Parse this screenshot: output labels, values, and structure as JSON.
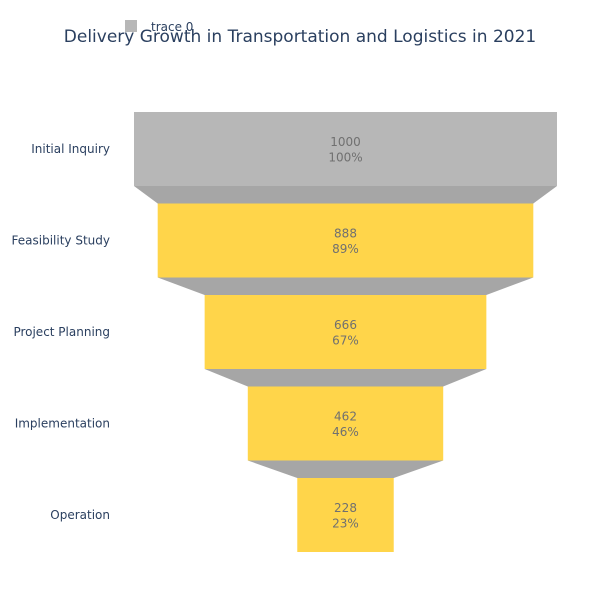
{
  "chart_data": {
    "type": "funnel",
    "title": "Delivery Growth in Transportation and Logistics in 2021",
    "legend": {
      "position": "top-left",
      "entries": [
        "trace 0"
      ]
    },
    "categories": [
      "Initial Inquiry",
      "Feasibility Study",
      "Project Planning",
      "Implementation",
      "Operation"
    ],
    "values": [
      1000,
      888,
      666,
      462,
      228
    ],
    "percent_labels": [
      "100%",
      "89%",
      "67%",
      "46%",
      "23%"
    ],
    "colors": {
      "first_bar": "#b7b7b7",
      "bars": "#ffd54a",
      "connector": "#a6a6a6",
      "legend_swatch": "#b7b7b7",
      "value_text": "#707070",
      "label_text": "#2a3f5f"
    }
  }
}
